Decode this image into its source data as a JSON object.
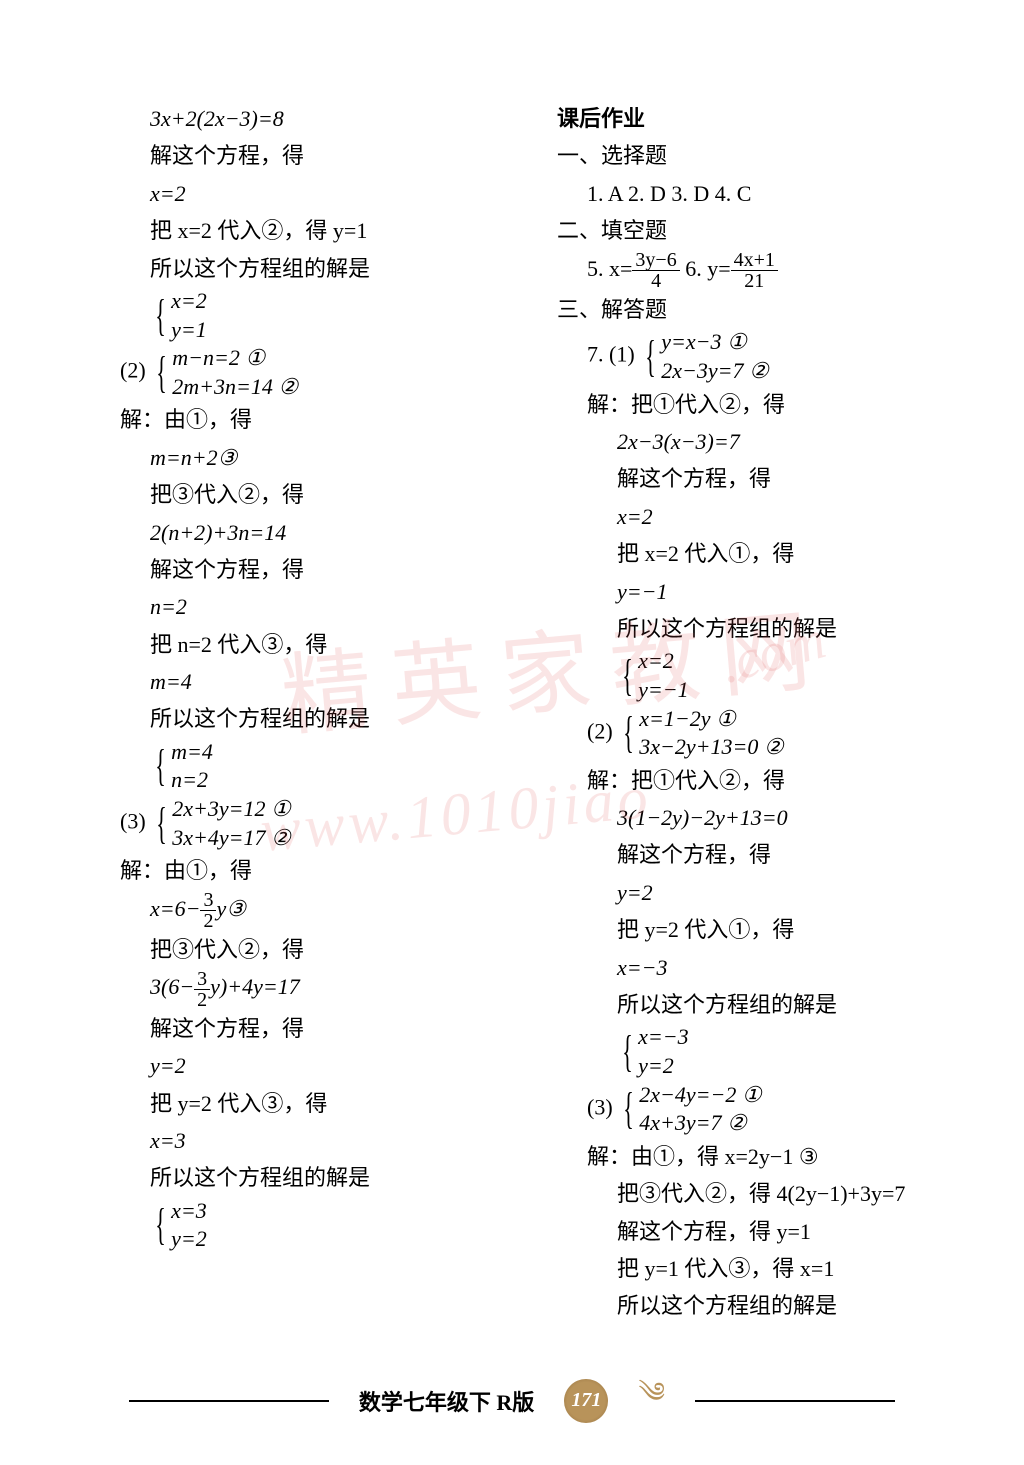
{
  "left": {
    "l1": "3x+2(2x−3)=8",
    "l2": "解这个方程，得",
    "l3": "x=2",
    "l4": "把 x=2 代入②，得 y=1",
    "l5": "所以这个方程组的解是",
    "sys1a": "x=2",
    "sys1b": "y=1",
    "p2label": "(2)",
    "sys2a": "m−n=2   ①",
    "sys2b": "2m+3n=14   ②",
    "l6": "解：由①，得",
    "l7": "m=n+2③",
    "l8": "把③代入②，得",
    "l9": "2(n+2)+3n=14",
    "l10": "解这个方程，得",
    "l11": "n=2",
    "l12": "把 n=2 代入③，得",
    "l13": "m=4",
    "l14": "所以这个方程组的解是",
    "sys3a": "m=4",
    "sys3b": "n=2",
    "p3label": "(3)",
    "sys4a": "2x+3y=12   ①",
    "sys4b": "3x+4y=17   ②",
    "l15": "解：由①，得",
    "l16pre": "x=6−",
    "l16num": "3",
    "l16den": "2",
    "l16post": "y③",
    "l17": "把③代入②，得",
    "l18pre": "3(6−",
    "l18num": "3",
    "l18den": "2",
    "l18post": "y)+4y=17",
    "l19": "解这个方程，得",
    "l20": "y=2",
    "l21": "把 y=2 代入③，得",
    "l22": "x=3",
    "l23": "所以这个方程组的解是",
    "sys5a": "x=3",
    "sys5b": "y=2"
  },
  "right": {
    "h1": "课后作业",
    "h2": "一、选择题",
    "mc": "1. A   2. D   3. D   4. C",
    "h3": "二、填空题",
    "q5pre": "5.  x=",
    "q5num": "3y−6",
    "q5den": "4",
    "q6pre": "   6.  y=",
    "q6num": "4x+1",
    "q6den": "21",
    "h4": "三、解答题",
    "q7label": "7. (1)",
    "sys6a": "y=x−3   ①",
    "sys6b": "2x−3y=7   ②",
    "r1": "解：把①代入②，得",
    "r2": "2x−3(x−3)=7",
    "r3": "解这个方程，得",
    "r4": "x=2",
    "r5": "把 x=2 代入①，得",
    "r6": "y=−1",
    "r7": "所以这个方程组的解是",
    "sys7a": "x=2",
    "sys7b": "y=−1",
    "p2blabel": "(2)",
    "sys8a": "x=1−2y   ①",
    "sys8b": "3x−2y+13=0   ②",
    "r8": "解：把①代入②，得",
    "r9": "3(1−2y)−2y+13=0",
    "r10": "解这个方程，得",
    "r11": "y=2",
    "r12": "把 y=2 代入①，得",
    "r13": "x=−3",
    "r14": "所以这个方程组的解是",
    "sys9a": "x=−3",
    "sys9b": "y=2",
    "p3blabel": "(3)",
    "sys10a": "2x−4y=−2   ①",
    "sys10b": "4x+3y=7   ②",
    "r15": "解：由①，得 x=2y−1   ③",
    "r16": "把③代入②，得 4(2y−1)+3y=7",
    "r17": "解这个方程，得 y=1",
    "r18": "把 y=1 代入③，得 x=1",
    "r19": "所以这个方程组的解是"
  },
  "footer": {
    "label": "数学七年级下 R版",
    "page": "171"
  },
  "watermark": {
    "chars": "精英家教网",
    "url": "www.1010jiao",
    "com": ".com"
  }
}
